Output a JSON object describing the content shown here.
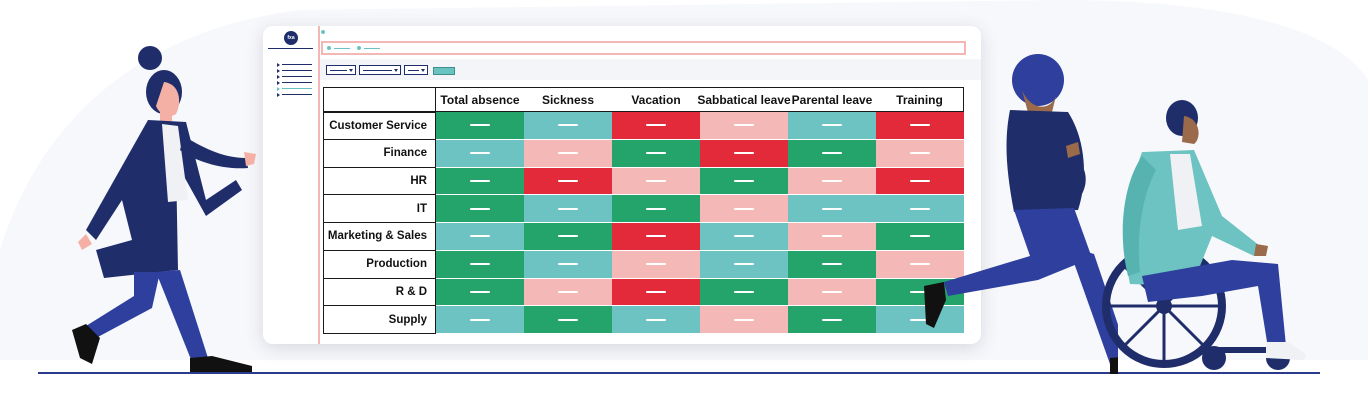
{
  "app": {
    "logo_text": "fxa",
    "sidebar_item_count": 6,
    "active_sidebar_index": 4
  },
  "table": {
    "columns": [
      "Total absence",
      "Sickness",
      "Vacation",
      "Sabbatical leave",
      "Parental leave",
      "Training"
    ],
    "rows": [
      "Customer Service",
      "Finance",
      "HR",
      "IT",
      "Marketing & Sales",
      "Production",
      "R & D",
      "Supply"
    ],
    "cell_levels": [
      [
        "dark-green",
        "teal",
        "red",
        "pink",
        "teal",
        "red"
      ],
      [
        "teal",
        "pink",
        "dark-green",
        "red",
        "dark-green",
        "pink"
      ],
      [
        "dark-green",
        "red",
        "pink",
        "dark-green",
        "pink",
        "red"
      ],
      [
        "dark-green",
        "teal",
        "dark-green",
        "pink",
        "teal",
        "teal"
      ],
      [
        "teal",
        "dark-green",
        "red",
        "teal",
        "pink",
        "dark-green"
      ],
      [
        "dark-green",
        "teal",
        "pink",
        "teal",
        "dark-green",
        "pink"
      ],
      [
        "dark-green",
        "pink",
        "red",
        "dark-green",
        "pink",
        "dark-green"
      ],
      [
        "teal",
        "dark-green",
        "teal",
        "pink",
        "dark-green",
        "teal"
      ]
    ],
    "palette": {
      "dark-green": "#24a46a",
      "teal": "#6cc3c1",
      "red": "#e22a3a",
      "pink": "#f4b8b7"
    }
  },
  "colors": {
    "navy": "#1f2d6b",
    "accent": "#69c3c0",
    "border_pink": "#f3b7b5",
    "floor": "#2b3a8a"
  }
}
